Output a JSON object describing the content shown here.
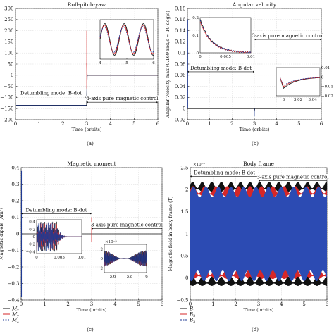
{
  "chart_data": [
    {
      "id": "a",
      "type": "line",
      "caption": "(a)",
      "title": "Roll-pitch-yaw",
      "xlabel": "Time (orbits)",
      "ylabel": "",
      "xlim": [
        0,
        6
      ],
      "ylim": [
        -200,
        300
      ],
      "xticks": [
        0,
        1,
        2,
        3,
        4,
        5,
        6
      ],
      "yticks": [
        -200,
        -150,
        -100,
        -50,
        0,
        50,
        100,
        150,
        200,
        250,
        300
      ],
      "grid": true,
      "annotations": [
        {
          "text": "Detumbling mode: B-dot",
          "x": 1.5,
          "y": -88,
          "span": [
            0,
            3
          ]
        },
        {
          "text": "3-axis pure magnetic control",
          "x": 4.5,
          "y": -112,
          "span": [
            3,
            6
          ]
        }
      ],
      "series": [
        {
          "color": "#d62728",
          "dash": "",
          "x": [
            0,
            3,
            3.02,
            6
          ],
          "y": [
            55,
            55,
            0,
            0
          ]
        },
        {
          "color": "#1f3a93",
          "dash": "",
          "x": [
            0,
            3,
            3.02,
            6
          ],
          "y": [
            -135,
            -135,
            0,
            0
          ]
        },
        {
          "color": "#111111",
          "dash": "",
          "x": [
            0,
            3,
            3.02,
            6
          ],
          "y": [
            -137,
            -137,
            0,
            0
          ]
        }
      ],
      "inset": {
        "xlim": [
          4,
          6
        ],
        "xticks": [
          4,
          5,
          6
        ],
        "yticks": [],
        "series": [
          {
            "color": "#111111",
            "dash": "",
            "func": "sin",
            "amp": 1.0,
            "period": 0.72,
            "phase": 0.0
          },
          {
            "color": "#d62728",
            "dash": "",
            "func": "sin",
            "amp": 0.9,
            "period": 0.72,
            "phase": 0.12
          },
          {
            "color": "#1f3a93",
            "dash": "2 1.5",
            "func": "sin",
            "amp": 0.82,
            "period": 0.72,
            "phase": 0.22
          }
        ]
      }
    },
    {
      "id": "b",
      "type": "line",
      "caption": "(b)",
      "title": "Angular velocity",
      "xlabel": "Time (orbits)",
      "ylabel": "Angular velocity max (0.169 rad/s = 10 deg/s)",
      "xlim": [
        0,
        6
      ],
      "ylim": [
        -0.02,
        0.18
      ],
      "xticks": [
        0,
        1,
        2,
        3,
        4,
        5,
        6
      ],
      "yticks": [
        -0.02,
        0,
        0.02,
        0.04,
        0.06,
        0.08,
        0.1,
        0.12,
        0.14,
        0.16,
        0.18
      ],
      "grid": true,
      "annotations": [
        {
          "text": "Detumbling mode: B-dot",
          "x": 1.5,
          "y": 0.07,
          "span": [
            0,
            3
          ]
        },
        {
          "text": "3-axis pure magnetic control",
          "x": 4.5,
          "y": 0.128,
          "span": [
            3,
            6
          ]
        }
      ],
      "series": [
        {
          "color": "#111111",
          "dash": "",
          "x": [
            0,
            2.98,
            3.0,
            3.02,
            6
          ],
          "y": [
            0,
            0,
            -0.005,
            0,
            0
          ]
        }
      ],
      "inset1": {
        "xlim": [
          0,
          0.01
        ],
        "ylim": [
          0,
          0.2
        ],
        "xticks": [
          0,
          0.005,
          0.01
        ],
        "xtick_labels": [
          "0",
          "0.005",
          "0.01"
        ],
        "yticks": [
          0,
          0.1,
          0.2
        ],
        "ytick_labels": [
          "0",
          "0.1",
          "0.2"
        ]
      },
      "inset2": {
        "xlim": [
          2.99,
          3.05
        ],
        "ylim": [
          -0.02,
          0.01
        ],
        "xticks": [
          3,
          3.02,
          3.04
        ],
        "xtick_labels": [
          "3",
          "3.02",
          "3.04"
        ],
        "yticks": [
          -0.02,
          -0.01,
          0,
          0.01
        ],
        "ytick_labels": [
          "−0.02",
          "−0.01",
          "0",
          "0.01"
        ]
      }
    },
    {
      "id": "c",
      "type": "line",
      "caption": "(c)",
      "title": "Magnetic moment",
      "xlabel": "Time (orbits)",
      "ylabel": "Magnetic dipole (Am²)",
      "xlim": [
        0,
        6
      ],
      "ylim": [
        -0.4,
        0.4
      ],
      "xticks": [
        0,
        1,
        2,
        3,
        4,
        5,
        6
      ],
      "yticks": [
        -0.4,
        -0.3,
        -0.2,
        -0.1,
        0,
        0.1,
        0.2,
        0.3,
        0.4
      ],
      "grid": true,
      "annotations": [
        {
          "text": "Detumbling mode: B-dot",
          "x": 1.5,
          "y": 0.135,
          "span": [
            0,
            3
          ]
        },
        {
          "text": "3-axis pure magnetic control",
          "x": 4.5,
          "y": 0.045,
          "span": [
            3,
            6
          ]
        }
      ],
      "legend": [
        {
          "label": "M",
          "sub": "x",
          "color": "#111111",
          "dash": ""
        },
        {
          "label": "M",
          "sub": "y",
          "color": "#d62728",
          "dash": ""
        },
        {
          "label": "M",
          "sub": "z",
          "color": "#1f3a93",
          "dash": "2 1.5"
        }
      ],
      "inset1": {
        "xticks": [
          0,
          0.005,
          0.01
        ],
        "xtick_labels": [
          "0",
          "0.005",
          "0.01"
        ],
        "yticks": [
          0.4,
          0.2,
          0,
          -0.2,
          -0.4
        ],
        "ytick_labels": [
          "0.4",
          "0.2",
          "0",
          "−0.2",
          "−0.4"
        ]
      },
      "inset2": {
        "exponent": "×10⁻⁴",
        "xticks": [
          5.6,
          5.8,
          6
        ],
        "xtick_labels": [
          "5.6",
          "5.8",
          "6"
        ],
        "yticks": [
          2,
          0,
          -2
        ],
        "ytick_labels": [
          "2",
          "0",
          "−2"
        ]
      }
    },
    {
      "id": "d",
      "type": "line",
      "caption": "(d)",
      "title": "Body frame",
      "xlabel": "Time (orbits)",
      "ylabel": "Magnetic field in body frame (T)",
      "exponent": "×10⁻⁴",
      "xlim": [
        0,
        6
      ],
      "ylim": [
        -0.5,
        2.5
      ],
      "xticks": [
        0,
        1,
        2,
        3,
        4,
        5,
        6
      ],
      "yticks": [
        -0.5,
        0,
        0.5,
        1,
        1.5,
        2,
        2.5
      ],
      "grid": true,
      "annotations": [
        {
          "text": "Detumbling mode: B-dot",
          "x": 1.5,
          "y": 2.35,
          "span": [
            0,
            3
          ]
        },
        {
          "text": "3-axis pure magnetic control",
          "x": 4.5,
          "y": 2.25,
          "span": [
            3,
            6
          ]
        }
      ],
      "legend": [
        {
          "label": "B",
          "sub": "1",
          "color": "#111111",
          "dash": ""
        },
        {
          "label": "B",
          "sub": "2",
          "color": "#d62728",
          "dash": ""
        },
        {
          "label": "B",
          "sub": "3",
          "color": "#1f3a93",
          "dash": "2 1.5"
        }
      ],
      "bands": [
        {
          "color": "#111111",
          "center": 2.02,
          "amp": 0.16,
          "period": 0.42
        },
        {
          "color": "#d62728",
          "center": 1.9,
          "amp": 0.18,
          "period": 0.5
        },
        {
          "color": "#d62728",
          "center": 0.05,
          "amp": 0.18,
          "period": 0.5
        },
        {
          "color": "#111111",
          "center": -0.12,
          "amp": 0.15,
          "period": 0.42
        },
        {
          "color": "#2c4bb3",
          "center": 1.0,
          "amp": 1.0,
          "period": 0.55
        }
      ]
    }
  ]
}
